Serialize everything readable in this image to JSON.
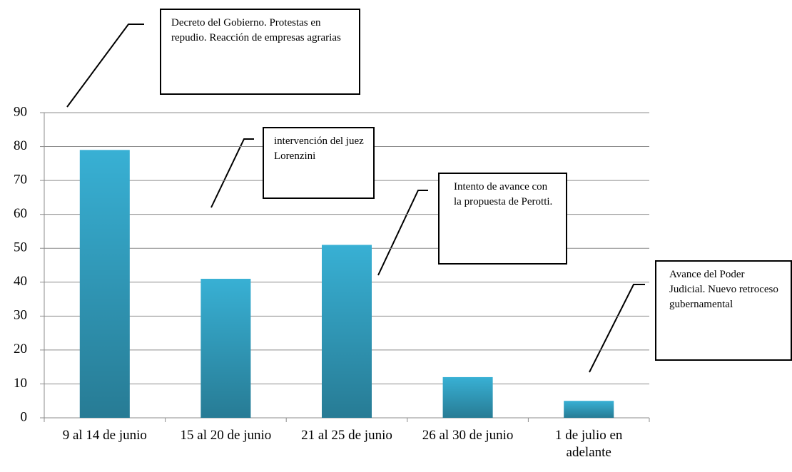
{
  "chart_data": {
    "type": "bar",
    "categories": [
      "9 al 14 de junio",
      "15 al 20 de junio",
      "21 al 25 de junio",
      "26 al 30 de junio",
      "1 de julio en adelante"
    ],
    "values": [
      79,
      41,
      51,
      12,
      5
    ],
    "color": "#38b0d4",
    "ylim": [
      0,
      90
    ],
    "yticks": [
      0,
      10,
      20,
      30,
      40,
      50,
      60,
      70,
      80,
      90
    ],
    "grid": true,
    "annotations": [
      "Decreto del Gobierno. Protestas en repudio. Reacción de empresas agrarias",
      "intervención del juez Lorenzini",
      "Intento de avance con la propuesta de Perotti.",
      "Avance del Poder Judicial. Nuevo retroceso gubernamental"
    ]
  }
}
